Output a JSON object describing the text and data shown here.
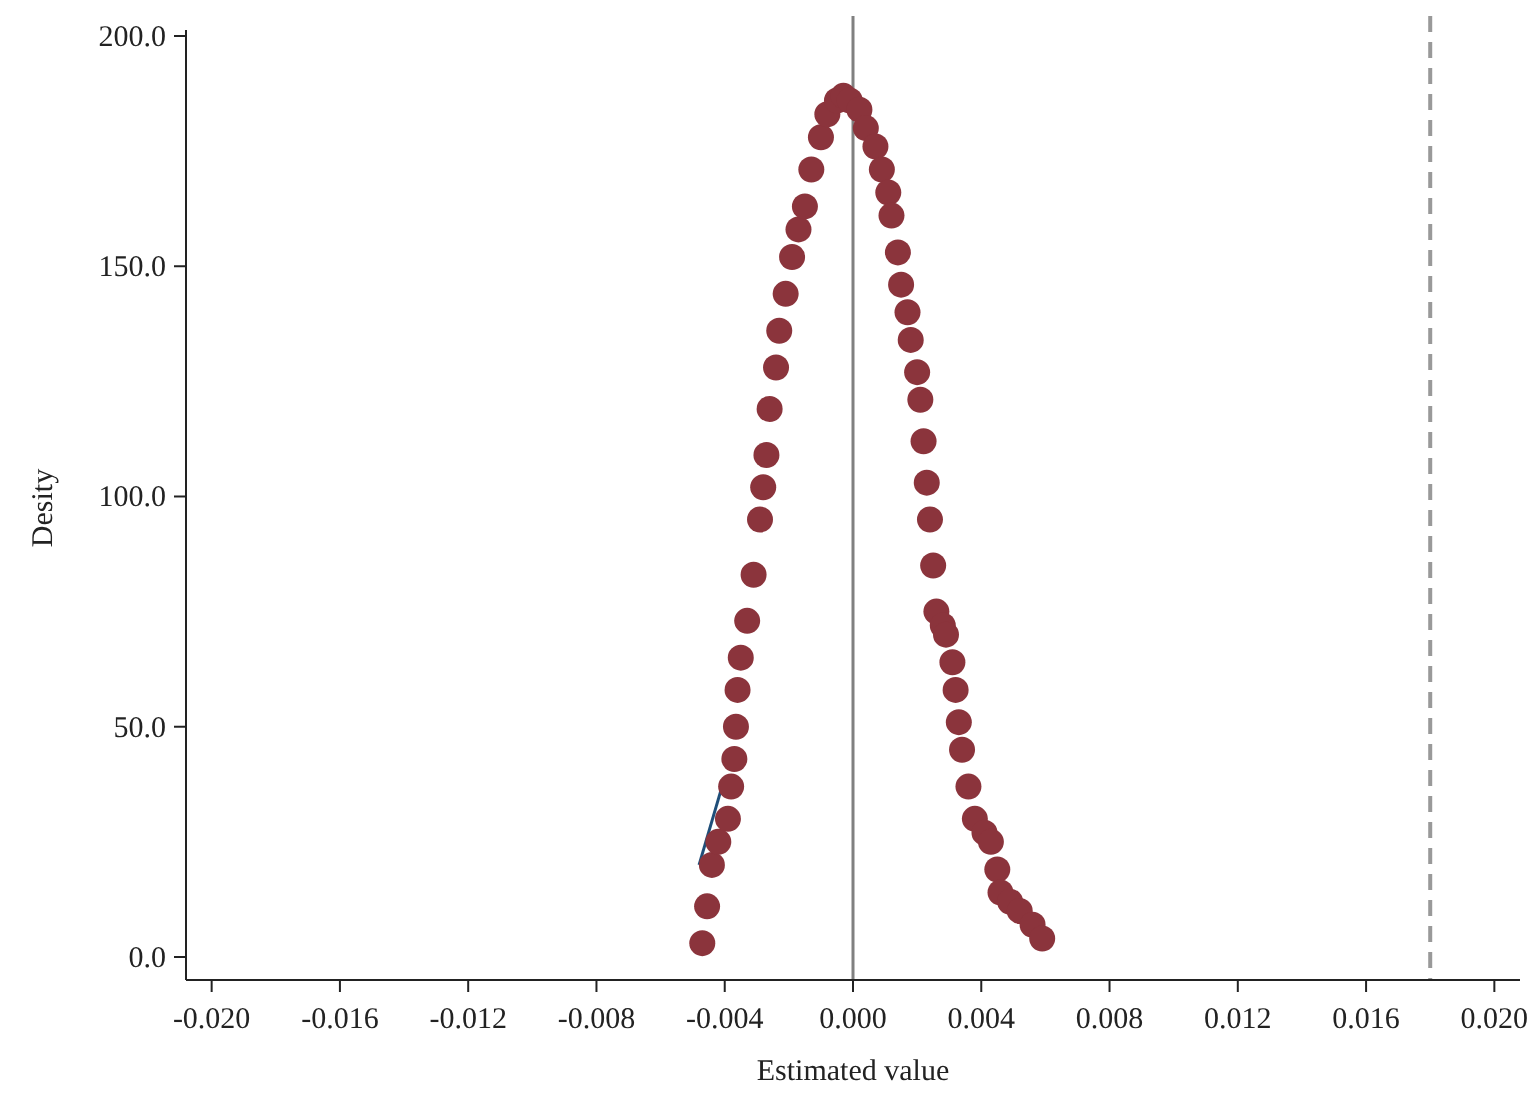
{
  "chart_data": {
    "type": "scatter",
    "xlabel": "Estimated value",
    "ylabel": "Desity",
    "xlim": [
      -0.0208,
      0.0208
    ],
    "ylim": [
      -5,
      200
    ],
    "xticks": [
      {
        "value": -0.02,
        "label": "-0.020"
      },
      {
        "value": -0.016,
        "label": "-0.016"
      },
      {
        "value": -0.012,
        "label": "-0.012"
      },
      {
        "value": -0.008,
        "label": "-0.008"
      },
      {
        "value": -0.004,
        "label": "-0.004"
      },
      {
        "value": 0,
        "label": "0.000"
      },
      {
        "value": 0.004,
        "label": "0.004"
      },
      {
        "value": 0.008,
        "label": "0.008"
      },
      {
        "value": 0.012,
        "label": "0.012"
      },
      {
        "value": 0.016,
        "label": "0.016"
      },
      {
        "value": 0.02,
        "label": "0.020"
      }
    ],
    "yticks": [
      {
        "value": 0,
        "label": "0.0"
      },
      {
        "value": 50,
        "label": "50.0"
      },
      {
        "value": 100,
        "label": "100.0"
      },
      {
        "value": 150,
        "label": "150.0"
      },
      {
        "value": 200,
        "label": "200.0"
      }
    ],
    "grid": false,
    "marker": "circle",
    "ref_lines": [
      {
        "axis": "x",
        "value": 0,
        "color": "#808080",
        "line_style": "solid"
      },
      {
        "axis": "x",
        "value": 0.018,
        "color": "#999999",
        "line_style": "dashed"
      }
    ],
    "series": [
      {
        "type": "line",
        "color": "#1f4e79",
        "marker": "none",
        "x": [
          -0.0048,
          -0.004
        ],
        "values": [
          20,
          39
        ]
      },
      {
        "color": "#8b343c",
        "x": [
          -0.0047,
          -0.00455,
          -0.0044,
          -0.0042,
          -0.0039,
          -0.0038,
          -0.0037,
          -0.00365,
          -0.0036,
          -0.0035,
          -0.0033,
          -0.0031,
          -0.0029,
          -0.0028,
          -0.0027,
          -0.0026,
          -0.0024,
          -0.0023,
          -0.0021,
          -0.0019,
          -0.0017,
          -0.0015,
          -0.0013,
          -0.001,
          -0.0008,
          -0.0005,
          -0.0003,
          -0.0001,
          0.0002,
          0.0004,
          0.0007,
          0.0009,
          0.0011,
          0.0012,
          0.0014,
          0.0015,
          0.0017,
          0.0018,
          0.002,
          0.0021,
          0.0022,
          0.0023,
          0.0024,
          0.0025,
          0.0026,
          0.0028,
          0.0029,
          0.0031,
          0.0032,
          0.0033,
          0.0034,
          0.0036,
          0.0038,
          0.0041,
          0.0043,
          0.0045,
          0.0046,
          0.0049,
          0.0052,
          0.0056,
          0.0059
        ],
        "values": [
          3,
          11,
          20,
          25,
          30,
          37,
          43,
          50,
          58,
          65,
          73,
          83,
          95,
          102,
          109,
          119,
          128,
          136,
          144,
          152,
          158,
          163,
          171,
          178,
          183,
          186,
          187,
          186,
          184,
          180,
          176,
          171,
          166,
          161,
          153,
          146,
          140,
          134,
          127,
          121,
          112,
          103,
          95,
          85,
          75,
          72,
          70,
          64,
          58,
          51,
          45,
          37,
          30,
          27,
          25,
          19,
          14,
          12,
          10,
          7,
          4
        ]
      }
    ]
  }
}
